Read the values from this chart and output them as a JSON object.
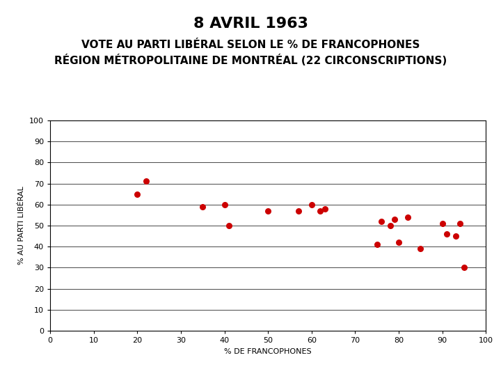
{
  "title": "8 AVRIL 1963",
  "subtitle_line1": "VOTE AU PARTI LIBÉRAL SELON LE % DE FRANCOPHONES",
  "subtitle_line2": "RÉGION MÉTROPOLITAINE DE MONTRÉAL (22 CIRCONSCRIPTIONS)",
  "xlabel": "% DE FRANCOPHONES",
  "ylabel": "% AU PARTI LIBÉRAL",
  "x": [
    20,
    22,
    35,
    40,
    41,
    50,
    57,
    60,
    62,
    63,
    75,
    76,
    78,
    79,
    80,
    82,
    85,
    90,
    91,
    93,
    94,
    95
  ],
  "y": [
    65,
    71,
    59,
    60,
    50,
    57,
    57,
    60,
    57,
    58,
    41,
    52,
    50,
    53,
    42,
    54,
    39,
    51,
    46,
    45,
    51,
    30
  ],
  "dot_color": "#cc0000",
  "dot_size": 30,
  "xlim": [
    0,
    100
  ],
  "ylim": [
    0,
    100
  ],
  "xticks": [
    0,
    10,
    20,
    30,
    40,
    50,
    60,
    70,
    80,
    90,
    100
  ],
  "yticks": [
    0,
    10,
    20,
    30,
    40,
    50,
    60,
    70,
    80,
    90,
    100
  ],
  "title_fontsize": 16,
  "subtitle_fontsize": 11,
  "axis_label_fontsize": 8,
  "tick_fontsize": 8,
  "background_color": "#ffffff"
}
